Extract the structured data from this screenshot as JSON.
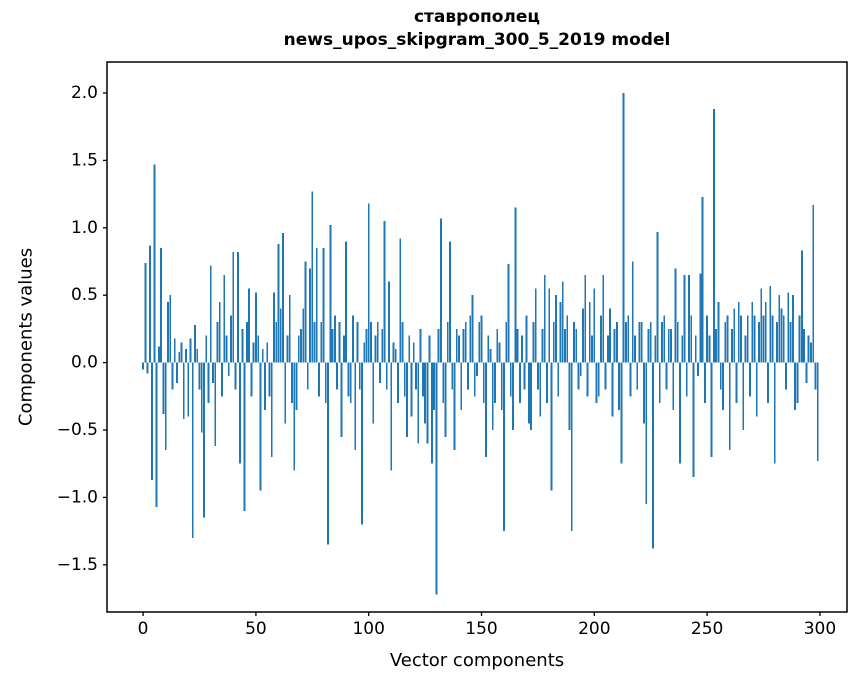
{
  "figure": {
    "title_line1": "ставрополец",
    "title_line2": "news_upos_skipgram_300_5_2019 model",
    "xlabel": "Vector components",
    "ylabel": "Components values"
  },
  "chart_data": {
    "type": "bar",
    "title": "ставрополец",
    "subtitle": "news_upos_skipgram_300_5_2019 model",
    "xlabel": "Vector components",
    "ylabel": "Components values",
    "bar_color": "#1f77b4",
    "grid": false,
    "legend": false,
    "x_start": 0,
    "xlim": [
      -16,
      312
    ],
    "ylim": [
      -1.85,
      2.23
    ],
    "x_ticks": [
      0,
      50,
      100,
      150,
      200,
      250,
      300
    ],
    "y_ticks": [
      2.0,
      1.5,
      1.0,
      0.5,
      0.0,
      -0.5,
      -1.0,
      -1.5
    ],
    "values": [
      -0.05,
      0.74,
      -0.08,
      0.87,
      -0.87,
      1.47,
      -1.07,
      0.12,
      0.85,
      -0.38,
      -0.65,
      0.45,
      0.5,
      -0.2,
      0.18,
      -0.15,
      0.08,
      0.15,
      -0.42,
      0.1,
      -0.4,
      0.18,
      -1.3,
      0.28,
      0.1,
      -0.2,
      -0.52,
      -1.15,
      0.2,
      -0.3,
      0.72,
      -0.15,
      -0.62,
      0.3,
      0.45,
      -0.25,
      0.65,
      0.2,
      -0.1,
      0.35,
      0.82,
      -0.2,
      0.82,
      -0.75,
      0.25,
      -1.1,
      0.3,
      0.55,
      -0.25,
      0.15,
      0.52,
      0.2,
      -0.95,
      0.1,
      -0.35,
      0.15,
      -0.25,
      -0.7,
      0.52,
      0.3,
      0.88,
      0.4,
      0.96,
      -0.45,
      0.2,
      0.5,
      -0.3,
      -0.8,
      -0.35,
      0.2,
      0.25,
      0.4,
      0.75,
      -0.2,
      0.7,
      1.27,
      0.3,
      0.85,
      -0.25,
      0.3,
      0.85,
      -0.3,
      -1.35,
      1.02,
      0.25,
      0.35,
      -0.2,
      0.3,
      -0.55,
      0.2,
      0.9,
      -0.25,
      -0.3,
      0.35,
      -0.65,
      0.3,
      -0.2,
      -1.2,
      0.15,
      0.25,
      1.18,
      0.3,
      -0.45,
      0.2,
      0.3,
      -0.15,
      0.25,
      1.05,
      -0.2,
      0.6,
      -0.8,
      0.15,
      0.1,
      -0.3,
      0.92,
      0.3,
      -0.25,
      -0.55,
      0.2,
      -0.4,
      0.15,
      -0.2,
      -0.6,
      0.25,
      -0.25,
      -0.45,
      -0.6,
      0.2,
      -0.75,
      -0.35,
      -1.72,
      0.25,
      1.07,
      -0.3,
      -0.55,
      0.3,
      0.9,
      -0.2,
      -0.65,
      0.25,
      0.2,
      -0.35,
      0.25,
      0.3,
      -0.2,
      0.35,
      0.5,
      -0.25,
      -0.1,
      0.3,
      0.35,
      -0.3,
      -0.7,
      0.2,
      0.1,
      -0.5,
      -0.3,
      0.25,
      0.15,
      -0.35,
      -1.25,
      0.3,
      0.73,
      -0.25,
      -0.5,
      1.15,
      0.25,
      -0.3,
      0.2,
      -0.2,
      0.35,
      -0.45,
      -0.5,
      0.3,
      0.55,
      -0.2,
      -0.4,
      0.25,
      0.65,
      -0.3,
      0.55,
      -0.95,
      0.3,
      0.5,
      -0.25,
      0.45,
      0.6,
      0.25,
      0.35,
      -0.5,
      -1.25,
      0.3,
      0.25,
      -0.2,
      -0.1,
      0.4,
      0.65,
      -0.25,
      0.45,
      0.2,
      0.55,
      -0.3,
      -0.25,
      0.35,
      0.65,
      -0.2,
      0.2,
      0.4,
      -0.4,
      0.25,
      0.3,
      -0.35,
      -0.75,
      2.0,
      0.3,
      0.35,
      -0.25,
      0.75,
      0.2,
      -0.2,
      0.3,
      0.3,
      -0.45,
      -1.05,
      0.25,
      0.3,
      -1.38,
      0.2,
      0.97,
      -0.3,
      0.3,
      0.35,
      -0.2,
      0.25,
      0.25,
      -0.35,
      0.7,
      0.3,
      -0.75,
      0.2,
      0.65,
      -0.25,
      0.65,
      0.35,
      -0.85,
      0.2,
      -0.1,
      0.66,
      1.23,
      -0.3,
      0.35,
      0.2,
      -0.7,
      1.88,
      0.25,
      0.45,
      -0.2,
      -0.35,
      0.3,
      0.35,
      -0.65,
      0.25,
      0.4,
      -0.3,
      0.45,
      0.35,
      -0.5,
      0.2,
      0.35,
      -0.25,
      0.45,
      0.35,
      -0.4,
      0.3,
      0.55,
      0.35,
      0.45,
      -0.3,
      0.57,
      0.35,
      -0.75,
      0.3,
      0.5,
      0.4,
      0.35,
      -0.2,
      0.52,
      0.3,
      0.5,
      -0.35,
      -0.3,
      0.35,
      0.83,
      0.25,
      -0.15,
      0.2,
      0.15,
      1.17,
      -0.2,
      -0.73
    ]
  }
}
